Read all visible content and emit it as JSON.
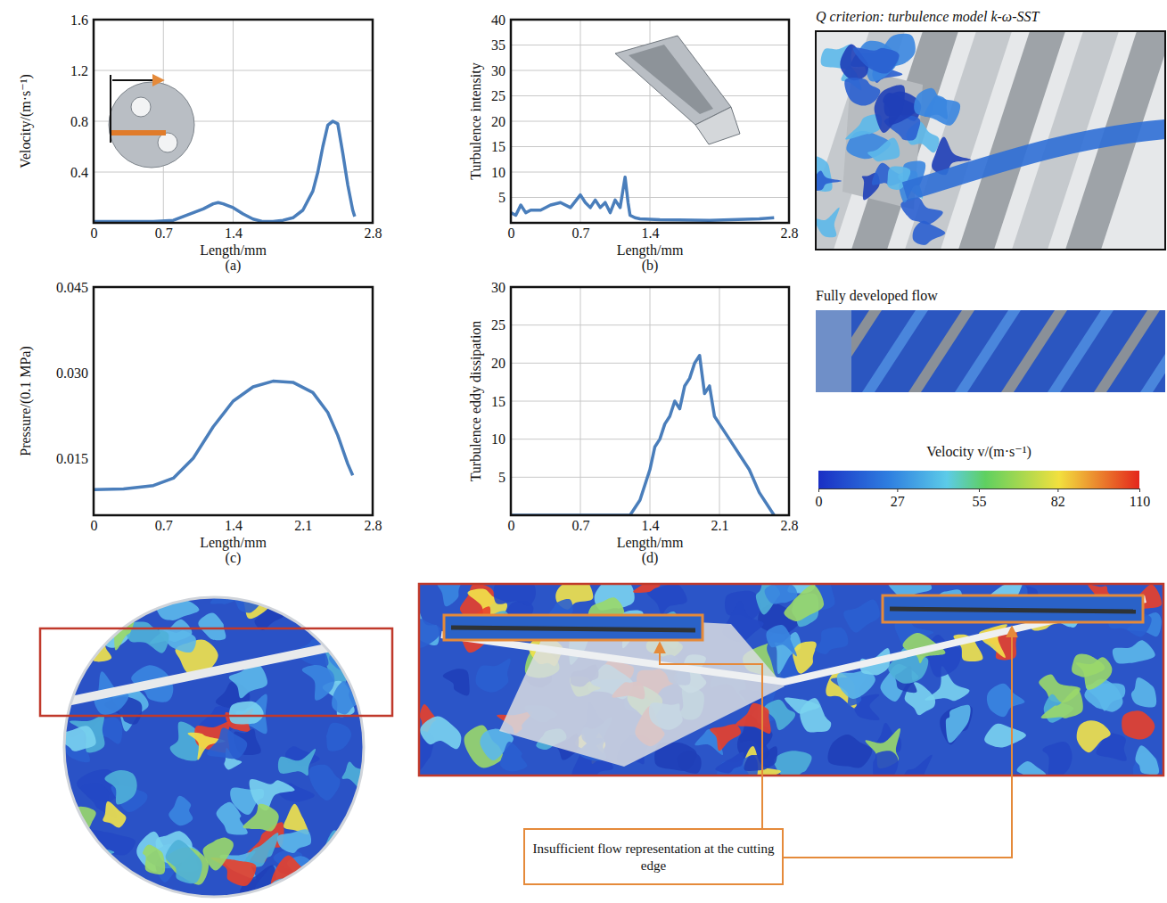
{
  "chart_data": [
    {
      "type": "line",
      "title": "(a)",
      "x_label": "Length/mm",
      "y_label": "Velocity/(m·s⁻¹)",
      "xlim": [
        0,
        2.8
      ],
      "xticks": [
        0,
        0.7,
        1.4,
        2.8
      ],
      "ylim": [
        0,
        1.6
      ],
      "yticks": [
        0.4,
        0.8,
        1.2,
        1.6
      ],
      "grid": true,
      "color": "#4a7ebb",
      "x": [
        0,
        0.3,
        0.6,
        0.8,
        0.9,
        1.0,
        1.1,
        1.2,
        1.25,
        1.3,
        1.4,
        1.5,
        1.6,
        1.7,
        1.8,
        1.9,
        2.0,
        2.1,
        2.2,
        2.25,
        2.3,
        2.35,
        2.4,
        2.45,
        2.5,
        2.55,
        2.6,
        2.62
      ],
      "values": [
        0.01,
        0.01,
        0.01,
        0.02,
        0.05,
        0.08,
        0.11,
        0.15,
        0.16,
        0.15,
        0.12,
        0.07,
        0.03,
        0.01,
        0.01,
        0.02,
        0.04,
        0.1,
        0.25,
        0.4,
        0.6,
        0.77,
        0.8,
        0.78,
        0.55,
        0.3,
        0.1,
        0.05
      ]
    },
    {
      "type": "line",
      "title": "(b)",
      "x_label": "Length/mm",
      "y_label": "Turbulence intensity",
      "xlim": [
        0,
        2.8
      ],
      "xticks": [
        0,
        0.7,
        1.4,
        2.8
      ],
      "ylim": [
        0,
        40
      ],
      "yticks": [
        5,
        10,
        15,
        20,
        25,
        30,
        35,
        40
      ],
      "grid": true,
      "color": "#4a7ebb",
      "x": [
        0,
        0.05,
        0.1,
        0.15,
        0.2,
        0.3,
        0.4,
        0.5,
        0.6,
        0.7,
        0.75,
        0.8,
        0.85,
        0.9,
        0.95,
        1.0,
        1.05,
        1.1,
        1.15,
        1.18,
        1.2,
        1.25,
        1.3,
        1.5,
        2.0,
        2.5,
        2.65
      ],
      "values": [
        2,
        1.5,
        3.5,
        2,
        2.5,
        2.5,
        3.5,
        4,
        3,
        5.5,
        4,
        3,
        4.5,
        3,
        4,
        2,
        4.5,
        3,
        9,
        4,
        1.5,
        1,
        0.8,
        0.6,
        0.5,
        0.8,
        1
      ]
    },
    {
      "type": "line",
      "title": "(c)",
      "x_label": "Length/mm",
      "y_label": "Pressure/(0.1 MPa)",
      "xlim": [
        0,
        2.8
      ],
      "xticks": [
        0,
        0.7,
        1.4,
        2.1,
        2.8
      ],
      "ylim": [
        0.005,
        0.045
      ],
      "yticks": [
        0.015,
        {
          "value": 0.03,
          "label": "0.030"
        },
        0.045
      ],
      "grid": false,
      "color": "#4a7ebb",
      "x": [
        0,
        0.3,
        0.6,
        0.8,
        1.0,
        1.2,
        1.4,
        1.6,
        1.8,
        2.0,
        2.2,
        2.35,
        2.45,
        2.55,
        2.6
      ],
      "values": [
        0.0095,
        0.0096,
        0.0102,
        0.0115,
        0.015,
        0.0205,
        0.025,
        0.0275,
        0.0285,
        0.0283,
        0.0265,
        0.023,
        0.019,
        0.014,
        0.012
      ]
    },
    {
      "type": "line",
      "title": "(d)",
      "x_label": "Length/mm",
      "y_label": "Turbulence eddy dissipation",
      "xlim": [
        0,
        2.8
      ],
      "xticks": [
        0,
        0.7,
        1.4,
        2.1,
        2.8
      ],
      "ylim": [
        0,
        30
      ],
      "yticks": [
        5,
        10,
        15,
        20,
        25,
        30
      ],
      "grid": true,
      "color": "#4a7ebb",
      "x": [
        0,
        0.7,
        1.2,
        1.3,
        1.4,
        1.45,
        1.5,
        1.55,
        1.6,
        1.65,
        1.7,
        1.75,
        1.8,
        1.85,
        1.9,
        1.95,
        2.0,
        2.05,
        2.1,
        2.2,
        2.3,
        2.4,
        2.5,
        2.6,
        2.65
      ],
      "values": [
        0,
        0,
        0,
        2,
        6,
        9,
        10,
        12,
        13,
        15,
        14,
        17,
        18,
        20,
        21,
        16,
        17,
        13,
        12,
        10,
        8,
        6,
        3,
        1,
        0
      ]
    }
  ],
  "q_criterion_panel": {
    "title": "Q criterion: turbulence model k-ω-SST"
  },
  "flow_panel": {
    "title": "Fully developed flow"
  },
  "colorbar": {
    "title": "Velocity v/(m·s⁻¹)",
    "range": [
      0,
      110
    ],
    "ticks": [
      0,
      27,
      55,
      82,
      110
    ]
  },
  "callout": {
    "text": "Insufficient flow representation at the cutting edge"
  }
}
